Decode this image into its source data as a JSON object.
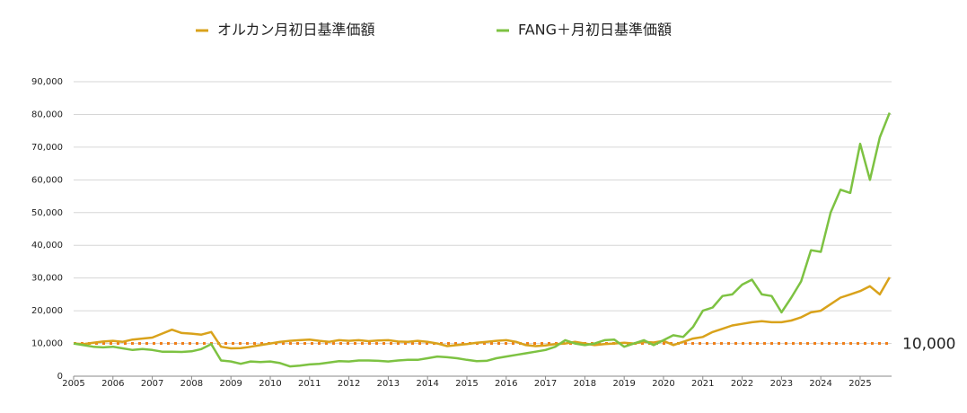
{
  "chart_data": {
    "type": "line",
    "x": [
      2005,
      2005.25,
      2005.5,
      2005.75,
      2006,
      2006.25,
      2006.5,
      2006.75,
      2007,
      2007.25,
      2007.5,
      2007.75,
      2008,
      2008.25,
      2008.5,
      2008.75,
      2009,
      2009.25,
      2009.5,
      2009.75,
      2010,
      2010.25,
      2010.5,
      2010.75,
      2011,
      2011.25,
      2011.5,
      2011.75,
      2012,
      2012.25,
      2012.5,
      2012.75,
      2013,
      2013.25,
      2013.5,
      2013.75,
      2014,
      2014.25,
      2014.5,
      2014.75,
      2015,
      2015.25,
      2015.5,
      2015.75,
      2016,
      2016.25,
      2016.5,
      2016.75,
      2017,
      2017.25,
      2017.5,
      2017.75,
      2018,
      2018.25,
      2018.5,
      2018.75,
      2019,
      2019.25,
      2019.5,
      2019.75,
      2020,
      2020.25,
      2020.5,
      2020.75,
      2021,
      2021.25,
      2021.5,
      2021.75,
      2022,
      2022.25,
      2022.5,
      2022.75,
      2023,
      2023.25,
      2023.5,
      2023.75,
      2024,
      2024.25,
      2024.5,
      2024.75,
      2025,
      2025.25,
      2025.5,
      2025.75
    ],
    "series": [
      {
        "name": "オルカン月初日基準価額",
        "color": "#d9a21b",
        "values": [
          10000,
          9800,
          10200,
          10600,
          10800,
          10500,
          11200,
          11500,
          11800,
          13000,
          14200,
          13200,
          13000,
          12700,
          13500,
          9000,
          8500,
          8600,
          9000,
          9500,
          10000,
          10500,
          10800,
          11000,
          11200,
          10800,
          10500,
          11000,
          10800,
          11000,
          10700,
          10900,
          11000,
          10600,
          10500,
          10800,
          10500,
          10000,
          9200,
          9500,
          9800,
          10200,
          10500,
          10800,
          11000,
          10500,
          9500,
          9200,
          9400,
          9800,
          10000,
          10500,
          10000,
          9500,
          9800,
          10000,
          10200,
          10000,
          10500,
          10300,
          10800,
          9500,
          10500,
          11500,
          12000,
          13500,
          14500,
          15500,
          16000,
          16500,
          16800,
          16500,
          16500,
          17000,
          18000,
          19500,
          20000,
          22000,
          24000,
          25000,
          26000,
          27500,
          25000,
          30200
        ]
      },
      {
        "name": "FANG＋月初日基準価額",
        "color": "#7dc242",
        "values": [
          10000,
          9500,
          9000,
          8800,
          9000,
          8500,
          8000,
          8300,
          8000,
          7500,
          7500,
          7400,
          7600,
          8300,
          9800,
          4800,
          4500,
          3800,
          4500,
          4300,
          4500,
          4000,
          3000,
          3200,
          3600,
          3800,
          4200,
          4600,
          4500,
          4800,
          4800,
          4700,
          4500,
          4800,
          5000,
          5000,
          5500,
          6000,
          5800,
          5500,
          5000,
          4600,
          4700,
          5500,
          6000,
          6500,
          7000,
          7500,
          8000,
          9000,
          11000,
          10000,
          9500,
          10000,
          11000,
          11200,
          9000,
          10000,
          11000,
          9500,
          11000,
          12500,
          12000,
          15000,
          20000,
          21000,
          24500,
          25000,
          28000,
          29500,
          25000,
          24500,
          19500,
          24000,
          29000,
          38500,
          38000,
          50000,
          57000,
          56000,
          71000,
          60000,
          73000,
          80500
        ]
      }
    ],
    "xlim": [
      2005,
      2025.8
    ],
    "xticks": [
      2005,
      2006,
      2007,
      2008,
      2009,
      2010,
      2011,
      2012,
      2013,
      2014,
      2015,
      2016,
      2017,
      2018,
      2019,
      2020,
      2021,
      2022,
      2023,
      2024,
      2025
    ],
    "ylim": [
      0,
      90000
    ],
    "yticks": [
      0,
      {
        "value": 10000,
        "label": "10,000"
      },
      {
        "value": 20000,
        "label": "20,000"
      },
      {
        "value": 30000,
        "label": "30,000"
      },
      {
        "value": 40000,
        "label": "40,000"
      },
      {
        "value": 50000,
        "label": "50,000"
      },
      {
        "value": 60000,
        "label": "60,000"
      },
      {
        "value": 70000,
        "label": "70,000"
      },
      {
        "value": 80000,
        "label": "80,000"
      },
      {
        "value": 90000,
        "label": "90,000"
      }
    ],
    "grid": true,
    "reference_line": {
      "value": 10000,
      "label": "10,000",
      "color": "#f07f1a"
    },
    "legend": "top"
  }
}
